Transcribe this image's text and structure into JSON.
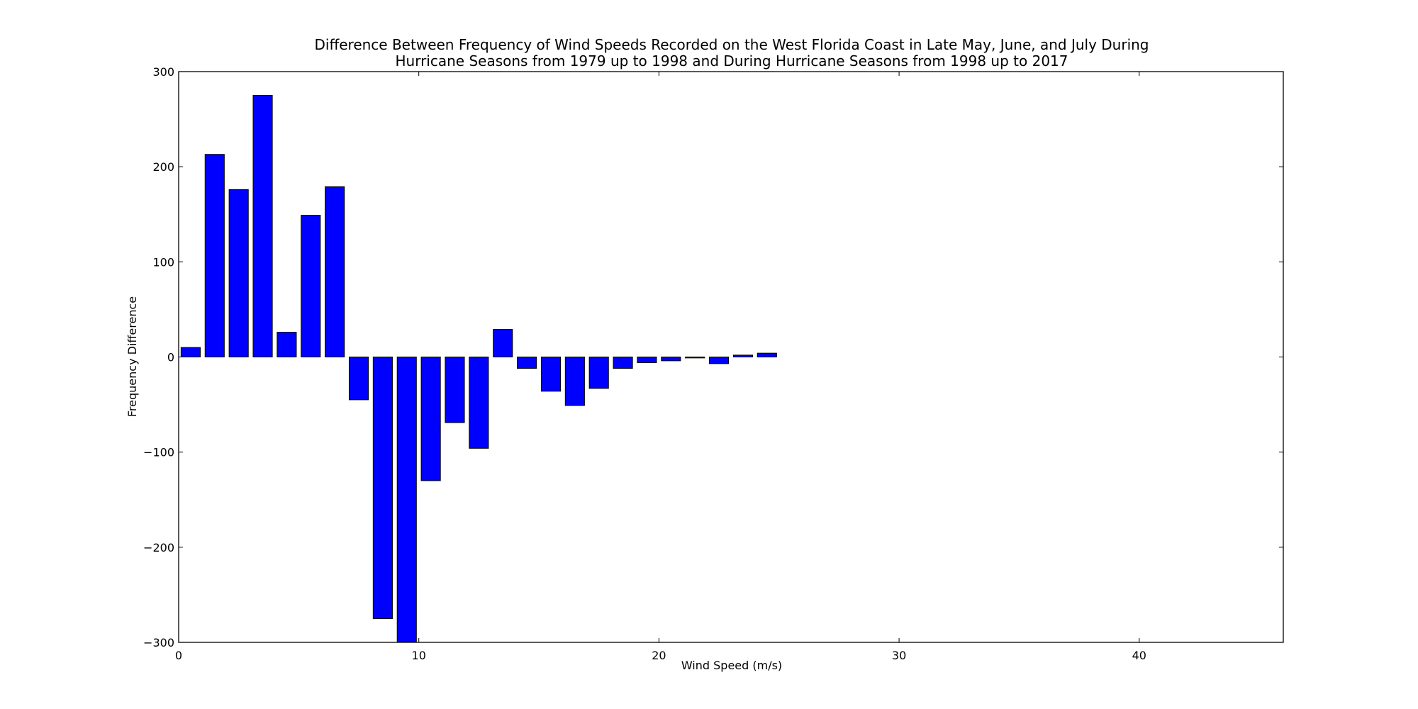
{
  "chart_data": {
    "type": "bar",
    "title_line1": "Difference Between Frequency of Wind Speeds Recorded on the West Florida Coast in Late May, June, and July During",
    "title_line2": "Hurricane Seasons from 1979 up to 1998 and During Hurricane Seasons from 1998 up to 2017",
    "xlabel": "Wind Speed (m/s)",
    "ylabel": "Frequency Difference",
    "xlim": [
      0,
      46
    ],
    "ylim": [
      -300,
      300
    ],
    "xticks": [
      0,
      10,
      20,
      30,
      40
    ],
    "yticks": [
      -300,
      -200,
      -100,
      0,
      100,
      200,
      300
    ],
    "bar_width": 0.8,
    "x": [
      0,
      1,
      2,
      3,
      4,
      5,
      6,
      7,
      8,
      9,
      10,
      11,
      12,
      13,
      14,
      15,
      16,
      17,
      18,
      19,
      20,
      21,
      22,
      23,
      24,
      25,
      26,
      27,
      28,
      29,
      30,
      31,
      32,
      33,
      34,
      35,
      36,
      37,
      38,
      39,
      40,
      41,
      42,
      43,
      44
    ],
    "values": [
      10,
      213,
      176,
      275,
      26,
      149,
      179,
      -45,
      -275,
      -300,
      -130,
      -69,
      -96,
      29,
      -12,
      -36,
      -51,
      -33,
      -12,
      -6,
      -4,
      -1,
      -7,
      2,
      4,
      0,
      0,
      0,
      0,
      0,
      0,
      0,
      0,
      0,
      0,
      0,
      0,
      0,
      0,
      0,
      0,
      0,
      0,
      0,
      0
    ],
    "bar_color": "#0000ff",
    "edge_color": "#000000"
  }
}
